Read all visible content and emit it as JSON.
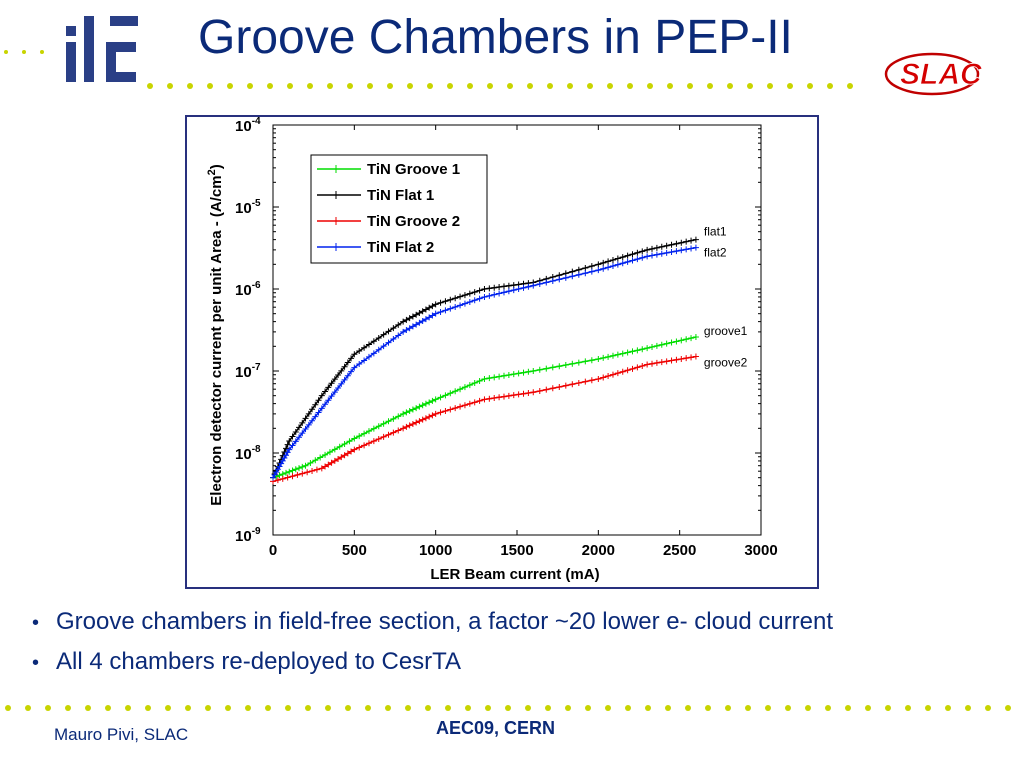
{
  "slide": {
    "title": "Groove Chambers in PEP-II",
    "bullets": [
      "Groove chambers in field-free section, a factor ~20 lower e- cloud current",
      "All 4 chambers re-deployed to CesrTA"
    ],
    "footer_left": "Mauro Pivi, SLAC",
    "footer_center": "AEC09, CERN"
  },
  "logos": {
    "left": "ilc",
    "right": "SLAC"
  },
  "colors": {
    "title": "#0b2a78",
    "dots": "#c8d400",
    "frame": "#28307e"
  },
  "chart_data": {
    "type": "line",
    "xlabel": "LER Beam current (mA)",
    "ylabel": "Electron detector current per unit Area - (A/cm",
    "ylabel_sup": "2",
    "ylabel_end": ")",
    "xlim": [
      0,
      3000
    ],
    "ylim": [
      1e-09,
      0.0001
    ],
    "yscale": "log",
    "x_ticks": [
      0,
      500,
      1000,
      1500,
      2000,
      2500,
      3000
    ],
    "y_ticks": [
      {
        "value": 1e-09,
        "base": "10",
        "exp": "-9"
      },
      {
        "value": 1e-08,
        "base": "10",
        "exp": "-8"
      },
      {
        "value": 1e-07,
        "base": "10",
        "exp": "-7"
      },
      {
        "value": 1e-06,
        "base": "10",
        "exp": "-6"
      },
      {
        "value": 1e-05,
        "base": "10",
        "exp": "-5"
      },
      {
        "value": 0.0001,
        "base": "10",
        "exp": "-4"
      }
    ],
    "legend_position": "top-left",
    "series": [
      {
        "name": "TiN Groove 1",
        "color": "#00dd00",
        "end_label": "groove1",
        "x": [
          0,
          200,
          500,
          800,
          1000,
          1300,
          1600,
          2000,
          2300,
          2600
        ],
        "y": [
          5e-09,
          7e-09,
          1.5e-08,
          3e-08,
          4.5e-08,
          8e-08,
          1e-07,
          1.4e-07,
          1.9e-07,
          2.6e-07
        ]
      },
      {
        "name": "TiN Flat 1",
        "color": "#000000",
        "end_label": "flat1",
        "x": [
          0,
          100,
          300,
          500,
          800,
          1000,
          1300,
          1600,
          2000,
          2300,
          2600
        ],
        "y": [
          5e-09,
          1.4e-08,
          5e-08,
          1.6e-07,
          4e-07,
          6.5e-07,
          1e-06,
          1.2e-06,
          2e-06,
          3e-06,
          4e-06
        ]
      },
      {
        "name": "TiN Groove 2",
        "color": "#ee0000",
        "end_label": "groove2",
        "x": [
          0,
          300,
          500,
          800,
          1000,
          1300,
          1600,
          2000,
          2300,
          2600
        ],
        "y": [
          4.5e-09,
          6.5e-09,
          1.1e-08,
          2e-08,
          3e-08,
          4.5e-08,
          5.5e-08,
          8e-08,
          1.2e-07,
          1.5e-07
        ]
      },
      {
        "name": "TiN Flat 2",
        "color": "#0022ee",
        "end_label": "flat2",
        "x": [
          0,
          100,
          300,
          500,
          800,
          1000,
          1300,
          1600,
          2000,
          2300,
          2600
        ],
        "y": [
          5e-09,
          1.1e-08,
          3.5e-08,
          1.1e-07,
          3e-07,
          5e-07,
          8e-07,
          1.1e-06,
          1.7e-06,
          2.5e-06,
          3.2e-06
        ]
      }
    ]
  }
}
